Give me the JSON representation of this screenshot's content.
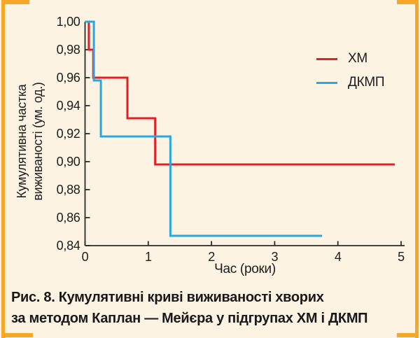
{
  "figure": {
    "caption_line1": "Рис. 8. Кумулятивні криві виживаності хворих",
    "caption_line2": "за методом Каплан — Мейєра у підгрупах ХМ і ДКМП"
  },
  "colors": {
    "background": "#fcf3e2",
    "accent_orange": "#f8a626",
    "series_hm_red": "#e31e24",
    "series_dkmp_blue": "#29a8e0",
    "axis": "#2b2b2b",
    "text": "#1c1c1c"
  },
  "chart_data": {
    "type": "line",
    "subtype": "kaplan-meier-step",
    "title": "",
    "xlabel": "Час (роки)",
    "ylabel_line1": "Кумулятивна частка",
    "ylabel_line2": "виживаності (ум. од.)",
    "xlim": [
      0,
      5
    ],
    "ylim": [
      0.84,
      1.0
    ],
    "grid": false,
    "legend_position": "upper right",
    "x_ticks": [
      {
        "value": 0,
        "label": "0"
      },
      {
        "value": 1,
        "label": "1"
      },
      {
        "value": 2,
        "label": "2"
      },
      {
        "value": 3,
        "label": "3"
      },
      {
        "value": 4,
        "label": "4"
      },
      {
        "value": 5,
        "label": "5"
      }
    ],
    "y_ticks": [
      {
        "value": 1.0,
        "label": "1,00"
      },
      {
        "value": 0.98,
        "label": "0,98"
      },
      {
        "value": 0.96,
        "label": "0,96"
      },
      {
        "value": 0.94,
        "label": "0,94"
      },
      {
        "value": 0.92,
        "label": "0,92"
      },
      {
        "value": 0.9,
        "label": "0,90"
      },
      {
        "value": 0.88,
        "label": "0,88"
      },
      {
        "value": 0.86,
        "label": "0,86"
      },
      {
        "value": 0.84,
        "label": "0,84"
      }
    ],
    "series": [
      {
        "name": "ХМ",
        "color": "#e31e24",
        "points": [
          [
            0,
            1.0
          ],
          [
            0.06,
            1.0
          ],
          [
            0.06,
            0.98
          ],
          [
            0.13,
            0.98
          ],
          [
            0.13,
            0.96
          ],
          [
            0.67,
            0.96
          ],
          [
            0.67,
            0.931
          ],
          [
            1.11,
            0.931
          ],
          [
            1.11,
            0.898
          ],
          [
            4.9,
            0.898
          ]
        ]
      },
      {
        "name": "ДКМП",
        "color": "#29a8e0",
        "points": [
          [
            0,
            1.0
          ],
          [
            0.14,
            1.0
          ],
          [
            0.14,
            0.958
          ],
          [
            0.25,
            0.958
          ],
          [
            0.25,
            0.918
          ],
          [
            1.35,
            0.918
          ],
          [
            1.35,
            0.847
          ],
          [
            3.75,
            0.847
          ]
        ]
      }
    ]
  }
}
